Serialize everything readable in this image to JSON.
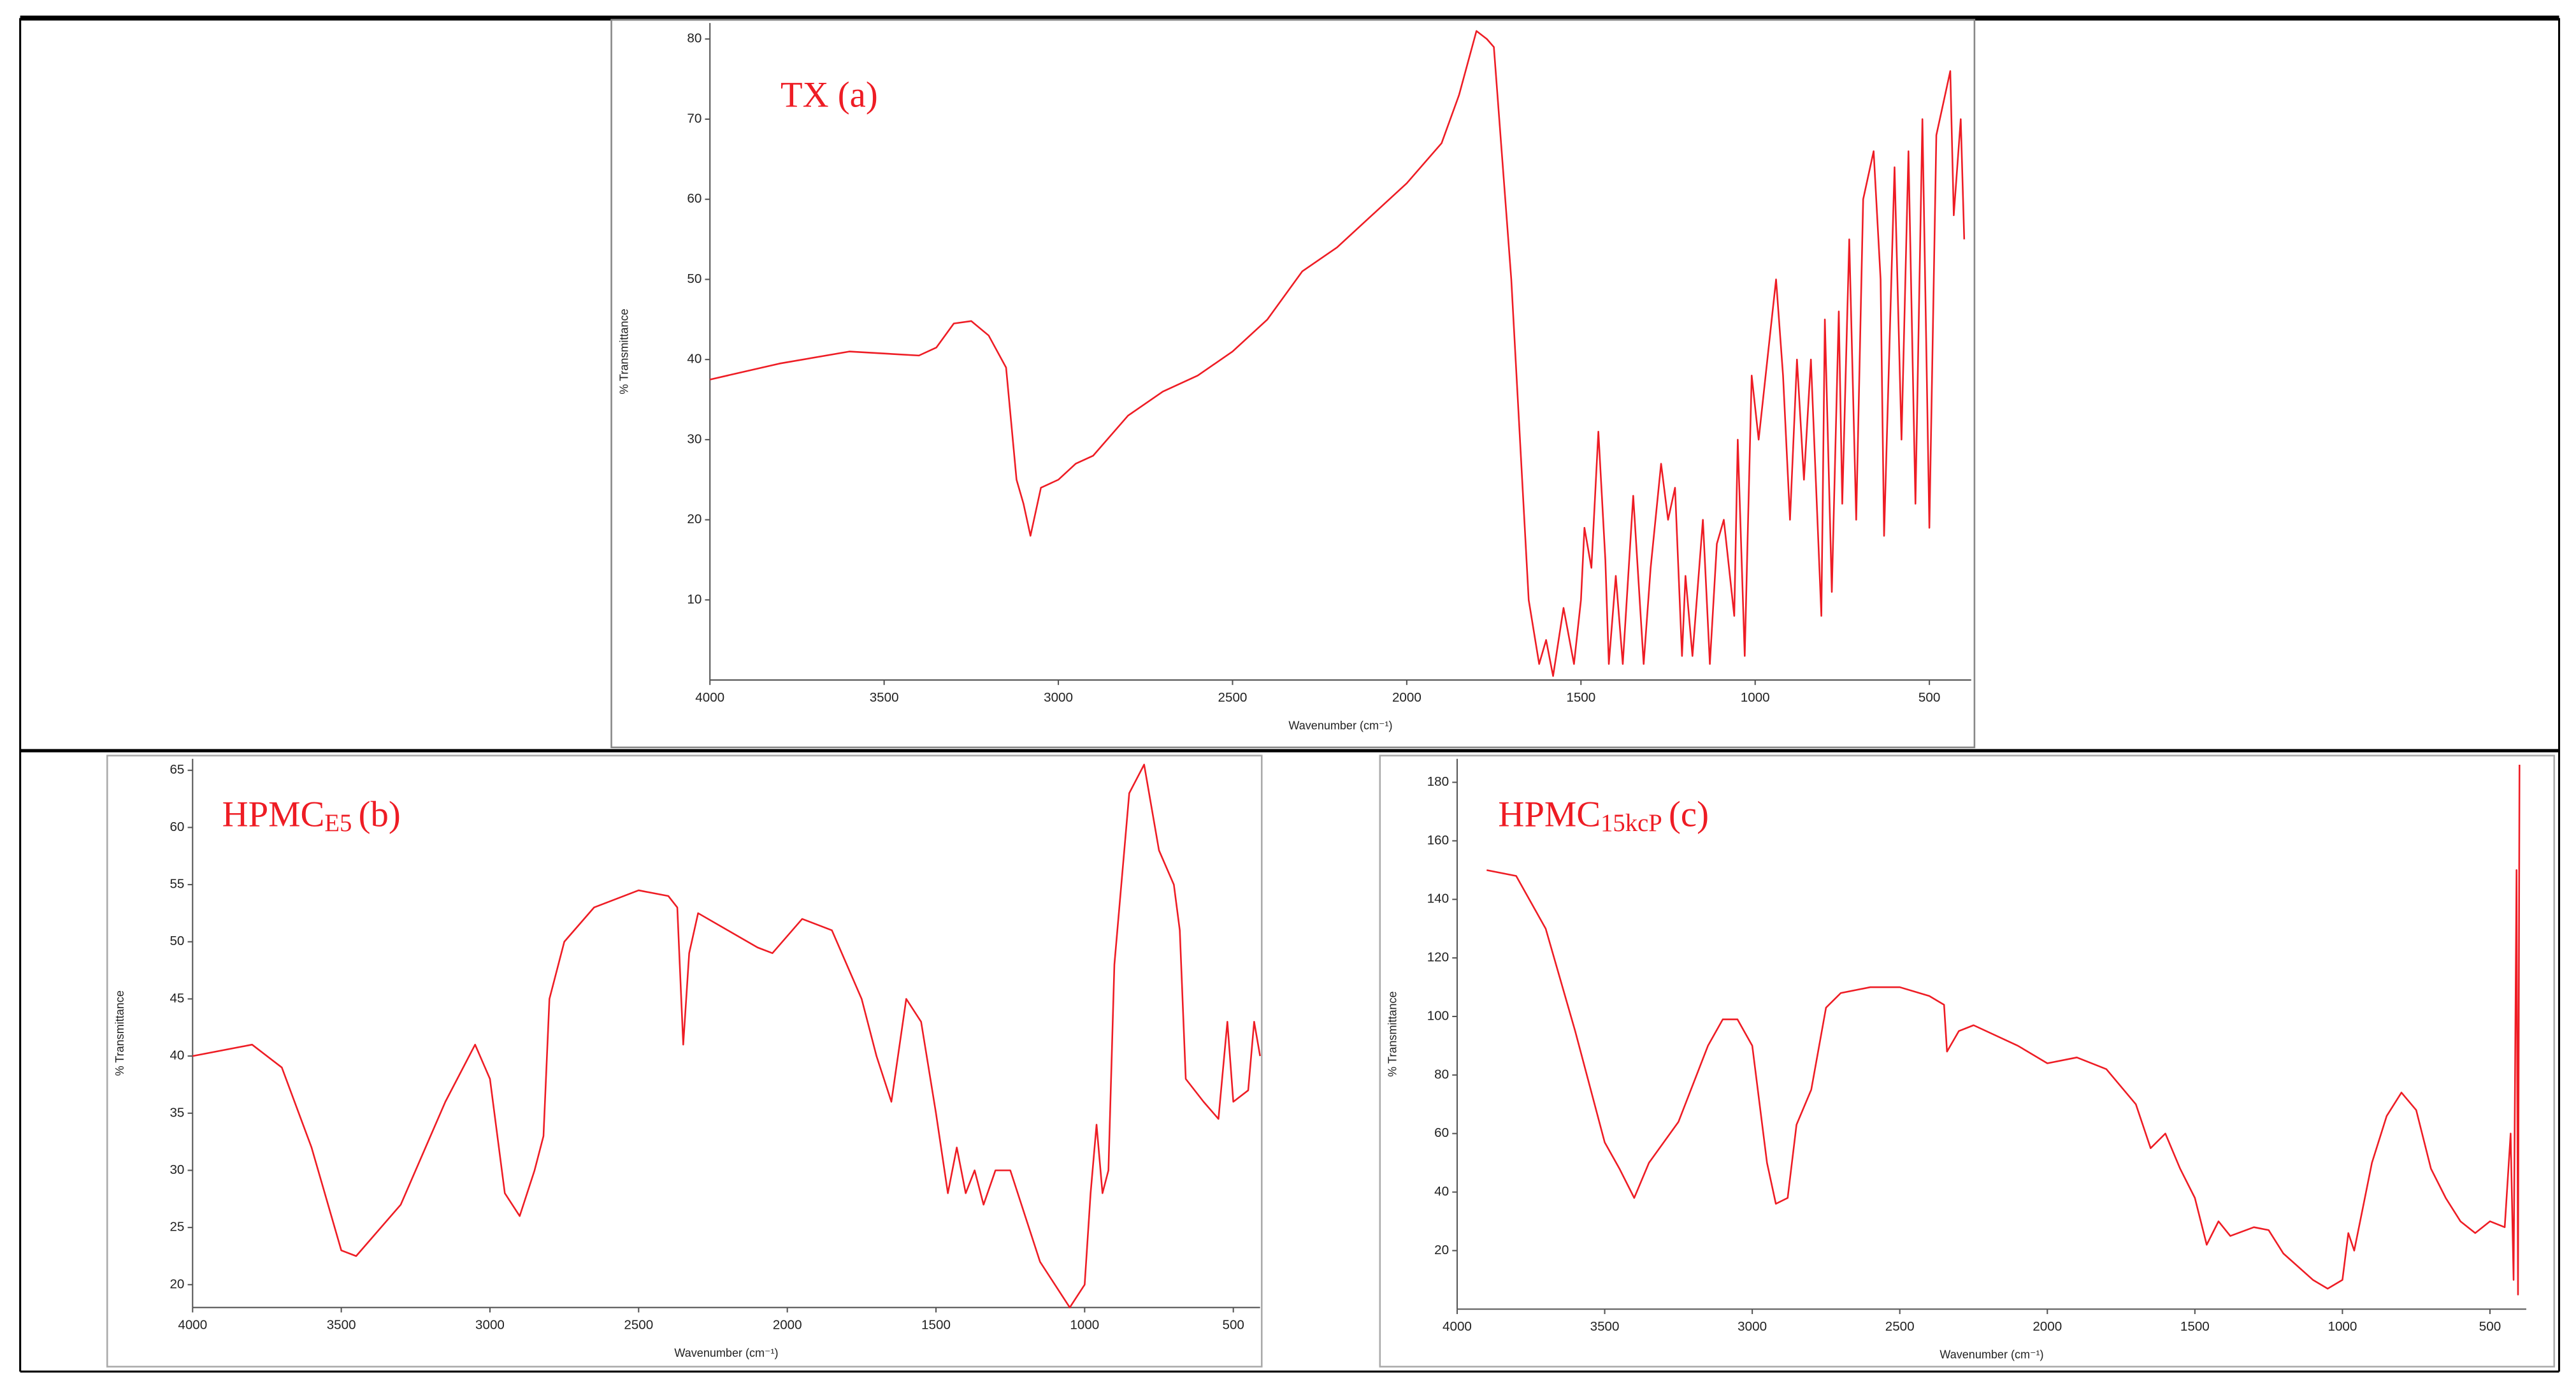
{
  "chart_data": [
    {
      "type": "line",
      "title": "TX (a)",
      "x_label": "Wavenumber  (cm⁻¹)",
      "y_label": "% Transmittance",
      "xlim": [
        4000,
        380
      ],
      "ylim": [
        0,
        82
      ],
      "xticks": [
        4000,
        3500,
        3000,
        2500,
        2000,
        1500,
        1000,
        500
      ],
      "yticks": [
        10,
        20,
        30,
        40,
        50,
        60,
        70,
        80
      ],
      "series": [
        {
          "color": "#ee1c24",
          "x": [
            4000,
            3800,
            3600,
            3400,
            3350,
            3300,
            3250,
            3200,
            3150,
            3120,
            3100,
            3080,
            3050,
            3000,
            2950,
            2900,
            2800,
            2700,
            2600,
            2500,
            2400,
            2300,
            2200,
            2100,
            2000,
            1900,
            1850,
            1800,
            1770,
            1750,
            1700,
            1650,
            1620,
            1600,
            1580,
            1550,
            1520,
            1500,
            1490,
            1470,
            1450,
            1430,
            1420,
            1400,
            1380,
            1350,
            1320,
            1300,
            1270,
            1250,
            1230,
            1210,
            1200,
            1180,
            1150,
            1130,
            1110,
            1090,
            1060,
            1050,
            1030,
            1010,
            990,
            960,
            940,
            920,
            900,
            880,
            860,
            840,
            810,
            800,
            780,
            760,
            750,
            730,
            710,
            690,
            660,
            640,
            630,
            600,
            580,
            560,
            540,
            520,
            500,
            480,
            460,
            440,
            430,
            410,
            400
          ],
          "values": [
            37.5,
            39.5,
            41,
            40.5,
            41.5,
            44.5,
            44.8,
            43,
            39,
            25,
            22,
            18,
            24,
            25,
            27,
            28,
            33,
            36,
            38,
            41,
            45,
            51,
            54,
            58,
            62,
            67,
            73,
            81,
            80,
            79,
            50,
            10,
            2,
            5,
            0.5,
            9,
            2,
            10,
            19,
            14,
            31,
            15,
            2,
            13,
            2,
            23,
            2,
            14,
            27,
            20,
            24,
            3,
            13,
            3,
            20,
            2,
            17,
            20,
            8,
            30,
            3,
            38,
            30,
            42,
            50,
            38,
            20,
            40,
            25,
            40,
            8,
            45,
            11,
            46,
            22,
            55,
            20,
            60,
            66,
            50,
            18,
            64,
            30,
            66,
            22,
            70,
            19,
            68,
            72,
            76,
            58,
            70,
            55
          ]
        }
      ]
    },
    {
      "type": "line",
      "title": "HPMC",
      "title_sub": "E5",
      "title_tag": "(b)",
      "x_label": "Wavenumber  (cm⁻¹)",
      "y_label": "% Transmittance",
      "xlim": [
        4000,
        410
      ],
      "ylim": [
        18,
        66
      ],
      "xticks": [
        4000,
        3500,
        3000,
        2500,
        2000,
        1500,
        1000,
        500
      ],
      "yticks": [
        20,
        25,
        30,
        35,
        40,
        45,
        50,
        55,
        60,
        65
      ],
      "series": [
        {
          "color": "#ee1c24",
          "x": [
            4000,
            3800,
            3700,
            3600,
            3500,
            3450,
            3300,
            3150,
            3050,
            3000,
            2950,
            2900,
            2850,
            2820,
            2800,
            2750,
            2650,
            2500,
            2400,
            2370,
            2350,
            2330,
            2300,
            2200,
            2100,
            2050,
            1950,
            1850,
            1750,
            1700,
            1650,
            1600,
            1550,
            1500,
            1460,
            1430,
            1400,
            1370,
            1340,
            1300,
            1250,
            1200,
            1150,
            1100,
            1050,
            1000,
            980,
            960,
            940,
            920,
            900,
            850,
            800,
            750,
            700,
            680,
            660,
            600,
            550,
            520,
            500,
            450,
            430,
            410
          ],
          "values": [
            40,
            41,
            39,
            32,
            23,
            22.5,
            27,
            36,
            41,
            38,
            28,
            26,
            30,
            33,
            45,
            50,
            53,
            54.5,
            54,
            53,
            41,
            49,
            52.5,
            51,
            49.5,
            49,
            52,
            51,
            45,
            40,
            36,
            45,
            43,
            35,
            28,
            32,
            28,
            30,
            27,
            30,
            30,
            26,
            22,
            20,
            18,
            20,
            28,
            34,
            28,
            30,
            48,
            63,
            65.5,
            58,
            55,
            51,
            38,
            36,
            34.5,
            43,
            36,
            37,
            43,
            40
          ]
        }
      ]
    },
    {
      "type": "line",
      "title": "HPMC",
      "title_sub": "15kcP",
      "title_tag": "(c)",
      "x_label": "Wavenumber  (cm⁻¹)",
      "y_label": "% Transmittance",
      "xlim": [
        4000,
        377
      ],
      "ylim": [
        0,
        188
      ],
      "xticks": [
        4000,
        3500,
        3000,
        2500,
        2000,
        1500,
        1000,
        500
      ],
      "yticks": [
        20,
        40,
        60,
        80,
        100,
        120,
        140,
        160,
        180
      ],
      "series": [
        {
          "color": "#ee1c24",
          "x": [
            3900,
            3800,
            3700,
            3600,
            3500,
            3450,
            3400,
            3350,
            3250,
            3150,
            3100,
            3050,
            3000,
            2950,
            2920,
            2880,
            2850,
            2800,
            2750,
            2700,
            2600,
            2500,
            2400,
            2350,
            2340,
            2300,
            2250,
            2100,
            2000,
            1900,
            1800,
            1700,
            1650,
            1600,
            1550,
            1500,
            1460,
            1420,
            1380,
            1300,
            1250,
            1200,
            1100,
            1050,
            1000,
            980,
            960,
            900,
            850,
            800,
            750,
            700,
            650,
            600,
            550,
            500,
            450,
            430,
            420,
            410,
            405,
            400
          ],
          "values": [
            150,
            148,
            130,
            95,
            57,
            48,
            38,
            50,
            64,
            90,
            99,
            99,
            90,
            50,
            36,
            38,
            63,
            75,
            103,
            108,
            110,
            110,
            107,
            104,
            88,
            95,
            97,
            90,
            84,
            86,
            82,
            70,
            55,
            60,
            48,
            38,
            22,
            30,
            25,
            28,
            27,
            19,
            10,
            7,
            10,
            26,
            20,
            50,
            66,
            74,
            68,
            48,
            38,
            30,
            26,
            30,
            28,
            60,
            10,
            150,
            5,
            186
          ]
        }
      ]
    }
  ]
}
